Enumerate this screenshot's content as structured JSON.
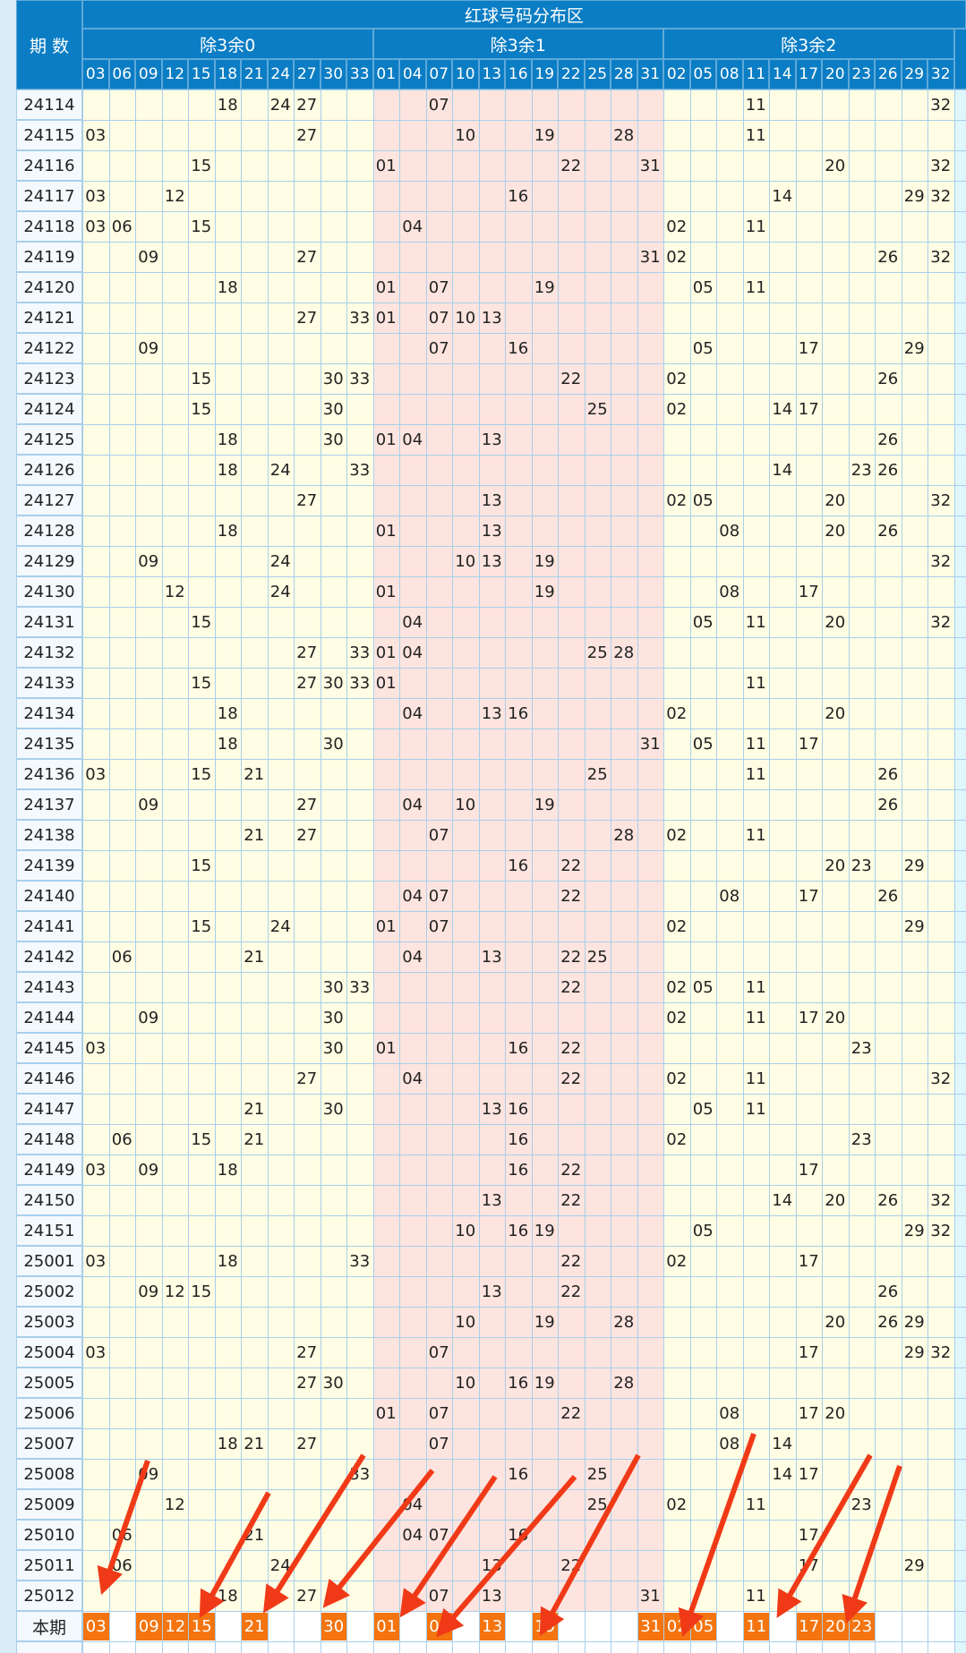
{
  "header": {
    "title": "红球号码分布区",
    "period_label": "期 数",
    "groups": [
      {
        "name": "除3余0",
        "numbers": [
          "03",
          "06",
          "09",
          "12",
          "15",
          "18",
          "21",
          "24",
          "27",
          "30",
          "33"
        ]
      },
      {
        "name": "除3余1",
        "numbers": [
          "01",
          "04",
          "07",
          "10",
          "13",
          "16",
          "19",
          "22",
          "25",
          "28",
          "31"
        ]
      },
      {
        "name": "除3余2",
        "numbers": [
          "02",
          "05",
          "08",
          "11",
          "14",
          "17",
          "20",
          "23",
          "26",
          "29",
          "32"
        ]
      }
    ]
  },
  "rows": [
    {
      "period": "24114",
      "numbers": [
        "18",
        "24",
        "27",
        "07",
        "11",
        "32"
      ]
    },
    {
      "period": "24115",
      "numbers": [
        "03",
        "27",
        "10",
        "19",
        "28",
        "11"
      ]
    },
    {
      "period": "24116",
      "numbers": [
        "15",
        "01",
        "22",
        "31",
        "20",
        "32"
      ]
    },
    {
      "period": "24117",
      "numbers": [
        "03",
        "12",
        "16",
        "14",
        "29",
        "32"
      ]
    },
    {
      "period": "24118",
      "numbers": [
        "03",
        "06",
        "15",
        "04",
        "02",
        "11"
      ]
    },
    {
      "period": "24119",
      "numbers": [
        "09",
        "27",
        "31",
        "02",
        "26",
        "32"
      ]
    },
    {
      "period": "24120",
      "numbers": [
        "18",
        "01",
        "07",
        "19",
        "05",
        "11"
      ]
    },
    {
      "period": "24121",
      "numbers": [
        "27",
        "33",
        "01",
        "07",
        "10",
        "13"
      ]
    },
    {
      "period": "24122",
      "numbers": [
        "09",
        "07",
        "16",
        "05",
        "17",
        "29"
      ]
    },
    {
      "period": "24123",
      "numbers": [
        "15",
        "30",
        "33",
        "22",
        "02",
        "26"
      ]
    },
    {
      "period": "24124",
      "numbers": [
        "15",
        "30",
        "25",
        "02",
        "14",
        "17"
      ]
    },
    {
      "period": "24125",
      "numbers": [
        "18",
        "30",
        "01",
        "04",
        "13",
        "26"
      ]
    },
    {
      "period": "24126",
      "numbers": [
        "18",
        "24",
        "33",
        "14",
        "23",
        "26"
      ]
    },
    {
      "period": "24127",
      "numbers": [
        "27",
        "13",
        "02",
        "05",
        "20",
        "32"
      ]
    },
    {
      "period": "24128",
      "numbers": [
        "18",
        "01",
        "13",
        "08",
        "20",
        "26"
      ]
    },
    {
      "period": "24129",
      "numbers": [
        "09",
        "24",
        "10",
        "13",
        "19",
        "32"
      ]
    },
    {
      "period": "24130",
      "numbers": [
        "12",
        "24",
        "01",
        "19",
        "08",
        "17"
      ]
    },
    {
      "period": "24131",
      "numbers": [
        "15",
        "04",
        "05",
        "11",
        "20",
        "32"
      ]
    },
    {
      "period": "24132",
      "numbers": [
        "27",
        "33",
        "01",
        "04",
        "25",
        "28"
      ]
    },
    {
      "period": "24133",
      "numbers": [
        "15",
        "27",
        "30",
        "33",
        "01",
        "11"
      ]
    },
    {
      "period": "24134",
      "numbers": [
        "18",
        "04",
        "13",
        "16",
        "02",
        "20"
      ]
    },
    {
      "period": "24135",
      "numbers": [
        "18",
        "30",
        "31",
        "05",
        "11",
        "17"
      ]
    },
    {
      "period": "24136",
      "numbers": [
        "03",
        "15",
        "21",
        "25",
        "11",
        "26"
      ]
    },
    {
      "period": "24137",
      "numbers": [
        "09",
        "27",
        "04",
        "10",
        "19",
        "26"
      ]
    },
    {
      "period": "24138",
      "numbers": [
        "21",
        "27",
        "07",
        "28",
        "02",
        "11"
      ]
    },
    {
      "period": "24139",
      "numbers": [
        "15",
        "16",
        "22",
        "20",
        "23",
        "29"
      ]
    },
    {
      "period": "24140",
      "numbers": [
        "04",
        "07",
        "22",
        "08",
        "17",
        "26"
      ]
    },
    {
      "period": "24141",
      "numbers": [
        "15",
        "24",
        "01",
        "07",
        "02",
        "29"
      ]
    },
    {
      "period": "24142",
      "numbers": [
        "06",
        "21",
        "04",
        "13",
        "22",
        "25"
      ]
    },
    {
      "period": "24143",
      "numbers": [
        "30",
        "33",
        "22",
        "02",
        "05",
        "11"
      ]
    },
    {
      "period": "24144",
      "numbers": [
        "09",
        "30",
        "02",
        "11",
        "17",
        "20"
      ]
    },
    {
      "period": "24145",
      "numbers": [
        "03",
        "30",
        "01",
        "16",
        "22",
        "23"
      ]
    },
    {
      "period": "24146",
      "numbers": [
        "27",
        "04",
        "22",
        "02",
        "11",
        "32"
      ]
    },
    {
      "period": "24147",
      "numbers": [
        "21",
        "30",
        "13",
        "16",
        "05",
        "11"
      ]
    },
    {
      "period": "24148",
      "numbers": [
        "06",
        "15",
        "21",
        "16",
        "02",
        "23"
      ]
    },
    {
      "period": "24149",
      "numbers": [
        "03",
        "09",
        "18",
        "16",
        "22",
        "17"
      ]
    },
    {
      "period": "24150",
      "numbers": [
        "13",
        "22",
        "14",
        "20",
        "26",
        "32"
      ]
    },
    {
      "period": "24151",
      "numbers": [
        "10",
        "16",
        "19",
        "05",
        "29",
        "32"
      ]
    },
    {
      "period": "25001",
      "numbers": [
        "03",
        "18",
        "33",
        "22",
        "02",
        "17"
      ]
    },
    {
      "period": "25002",
      "numbers": [
        "09",
        "12",
        "15",
        "13",
        "22",
        "26"
      ]
    },
    {
      "period": "25003",
      "numbers": [
        "10",
        "19",
        "28",
        "20",
        "26",
        "29"
      ]
    },
    {
      "period": "25004",
      "numbers": [
        "03",
        "27",
        "07",
        "17",
        "29",
        "32"
      ]
    },
    {
      "period": "25005",
      "numbers": [
        "27",
        "30",
        "10",
        "16",
        "19",
        "28"
      ]
    },
    {
      "period": "25006",
      "numbers": [
        "01",
        "07",
        "22",
        "08",
        "17",
        "20"
      ]
    },
    {
      "period": "25007",
      "numbers": [
        "18",
        "21",
        "27",
        "07",
        "08",
        "14"
      ]
    },
    {
      "period": "25008",
      "numbers": [
        "09",
        "33",
        "16",
        "25",
        "14",
        "17"
      ]
    },
    {
      "period": "25009",
      "numbers": [
        "12",
        "04",
        "25",
        "02",
        "11",
        "23"
      ]
    },
    {
      "period": "25010",
      "numbers": [
        "06",
        "21",
        "04",
        "07",
        "16",
        "17"
      ]
    },
    {
      "period": "25011",
      "numbers": [
        "06",
        "24",
        "13",
        "22",
        "17",
        "29"
      ]
    },
    {
      "period": "25012",
      "numbers": [
        "18",
        "27",
        "07",
        "13",
        "31",
        "11"
      ]
    }
  ],
  "current": {
    "label": "本期",
    "numbers": [
      "03",
      "09",
      "12",
      "15",
      "21",
      "30",
      "01",
      "07",
      "13",
      "19",
      "31",
      "02",
      "05",
      "11",
      "17",
      "20",
      "23"
    ]
  }
}
